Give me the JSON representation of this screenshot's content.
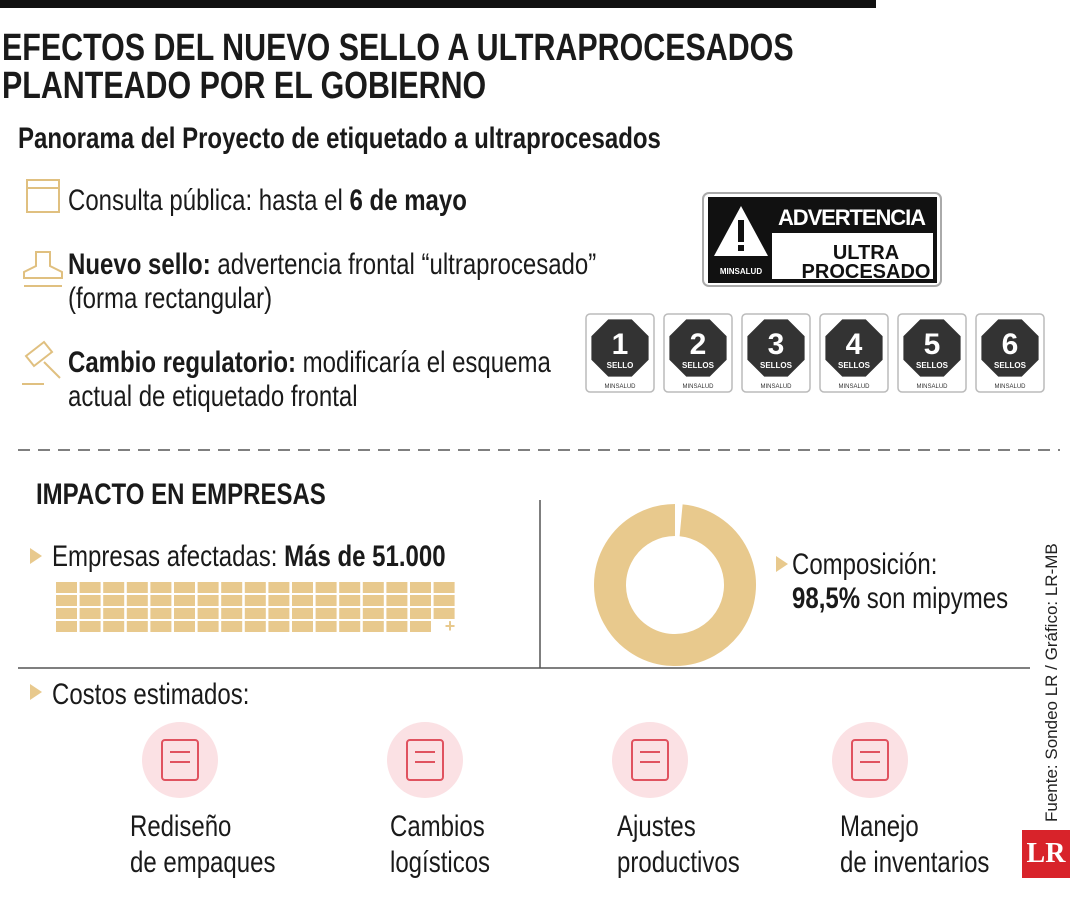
{
  "header": {
    "title_lines": [
      "EFECTOS DEL NUEVO SELLO A ULTRAPROCESADOS",
      "PLANTEADO POR EL GOBIERNO"
    ],
    "subtitle": "Panorama del Proyecto de etiquetado a ultraprocesados"
  },
  "items": [
    {
      "lead": "Consulta pública: hasta el ",
      "bold": "6 de mayo",
      "rest": []
    },
    {
      "lead": "",
      "bold": "Nuevo sello:",
      "rest": [
        " advertencia frontal “ultraprocesado”",
        "(forma rectangular)"
      ]
    },
    {
      "lead": "",
      "bold": "Cambio regulatorio:",
      "rest": [
        " modificaría el esquema",
        "actual de etiquetado frontal"
      ]
    }
  ],
  "seal": {
    "warning": "ADVERTENCIA",
    "line1": "ULTRA",
    "line2": "PROCESADO",
    "issuer": "MINSALUD"
  },
  "octagons": [
    {
      "number": "1",
      "label": "SELLO"
    },
    {
      "number": "2",
      "label": "SELLOS"
    },
    {
      "number": "3",
      "label": "SELLOS"
    },
    {
      "number": "4",
      "label": "SELLOS"
    },
    {
      "number": "5",
      "label": "SELLOS"
    },
    {
      "number": "6",
      "label": "SELLOS"
    }
  ],
  "impact": {
    "title": "IMPACTO EN EMPRESAS",
    "affected_lead": "Empresas afectadas: ",
    "affected_bold": "Más de 51.000",
    "composition_lead": "Composición:",
    "share": 98.5,
    "share_label": "98,5%",
    "share_rest": " son mipymes"
  },
  "costs": {
    "title": "Costos estimados:",
    "items": [
      [
        "Rediseño",
        "de empaques"
      ],
      [
        "Cambios",
        "logísticos"
      ],
      [
        "Ajustes",
        "productivos"
      ],
      [
        "Manejo",
        "de inventarios"
      ]
    ]
  },
  "source": "Fuente: Sondeo LR / Gráfico: LR-MB",
  "logo": "LR"
}
